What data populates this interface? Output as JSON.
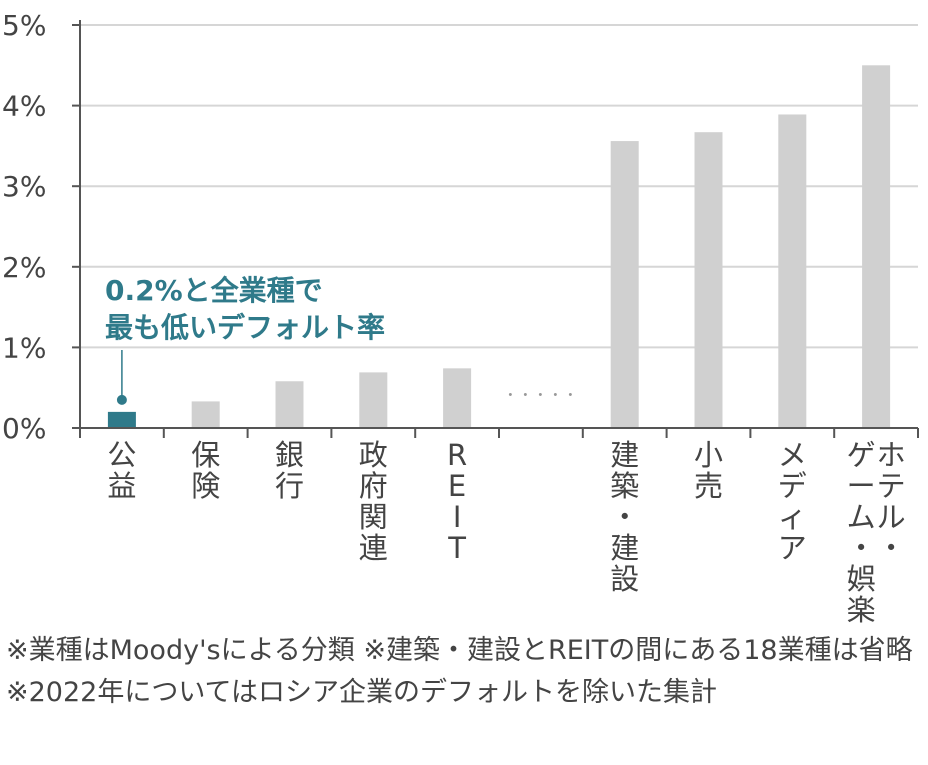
{
  "chart_data": {
    "type": "bar",
    "categories": [
      "公益",
      "保険",
      "銀行",
      "政府関連",
      "REIT",
      "",
      "建築・建設",
      "小売",
      "メディア",
      "ホテル・ゲーム・娯楽"
    ],
    "category_columns": [
      [
        [
          "公",
          "益"
        ]
      ],
      [
        [
          "保",
          "険"
        ]
      ],
      [
        [
          "銀",
          "行"
        ]
      ],
      [
        [
          "政",
          "府",
          "関",
          "連"
        ]
      ],
      [
        [
          "R",
          "E",
          "I",
          "T"
        ]
      ],
      [],
      [
        [
          "建",
          "築",
          "・",
          "建",
          "設"
        ]
      ],
      [
        [
          "小",
          "売"
        ]
      ],
      [
        [
          "メ",
          "デ",
          "ィ",
          "ア"
        ]
      ],
      [
        [
          "ゲ",
          "ー",
          "ム",
          "・",
          "娯",
          "楽"
        ],
        [
          "ホ",
          "テ",
          "ル",
          "・"
        ]
      ]
    ],
    "values": [
      0.2,
      0.33,
      0.58,
      0.69,
      0.74,
      null,
      3.56,
      3.67,
      3.89,
      4.5
    ],
    "ylim": [
      0,
      5
    ],
    "yticks": [
      "0%",
      "1%",
      "2%",
      "3%",
      "4%",
      "5%"
    ],
    "gap_marker": "・・・・・",
    "highlight_index": 0,
    "annotation": [
      "0.2%と全業種で",
      "最も低いデフォルト率"
    ],
    "grid": true,
    "colors": {
      "highlight": "#2f7a8a",
      "bar": "#d0d0d0",
      "grid": "#d6d6d6",
      "axis": "#555555",
      "text": "#444444"
    }
  },
  "footnote": "※業種はMoody'sによる分類 ※建築・建設とREITの間にある18業種は省略 ※2022年についてはロシア企業のデフォルトを除いた集計"
}
